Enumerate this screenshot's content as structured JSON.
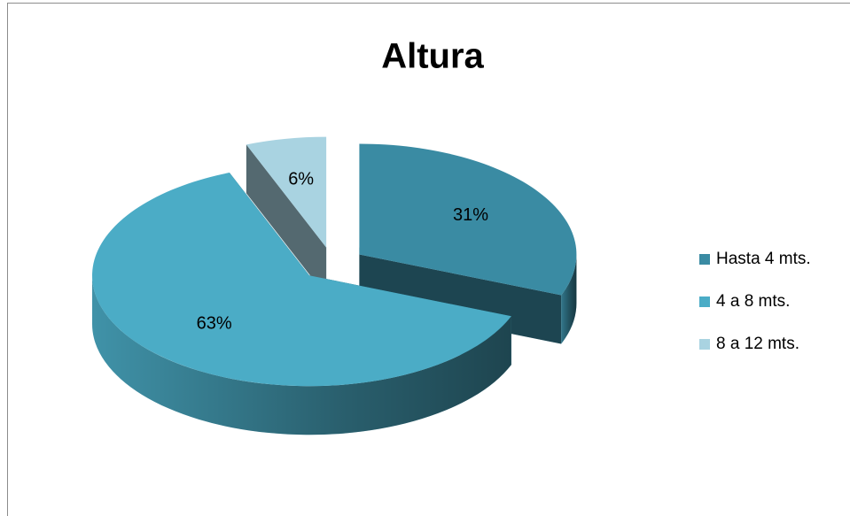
{
  "chart_data": {
    "type": "pie3d",
    "title": "Altura",
    "categories": [
      "Hasta 4 mts.",
      "4 a 8 mts.",
      "8 a 12 mts."
    ],
    "values": [
      31,
      63,
      6
    ],
    "value_labels": [
      "31%",
      "63%",
      "6%"
    ],
    "colors": [
      "#3a8ba3",
      "#4bacc6",
      "#a9d3e1"
    ],
    "legend": "right"
  }
}
